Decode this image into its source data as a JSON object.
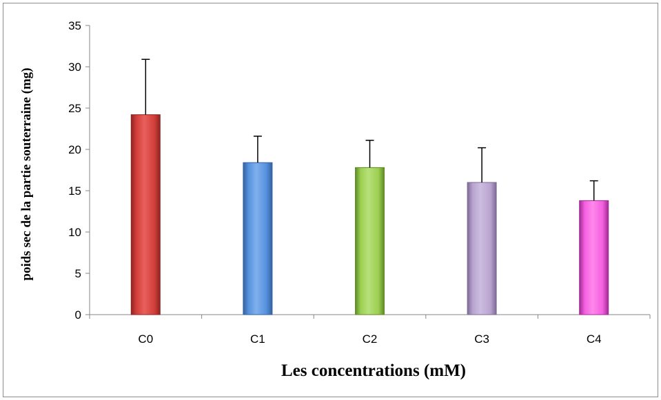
{
  "chart_data": {
    "type": "bar",
    "categories": [
      "C0",
      "C1",
      "C2",
      "C3",
      "C4"
    ],
    "values": [
      24.2,
      18.4,
      17.8,
      16.0,
      13.8
    ],
    "error": [
      6.7,
      3.2,
      3.3,
      4.2,
      2.4
    ],
    "ylim": [
      0,
      35
    ],
    "yticks": [
      0,
      5,
      10,
      15,
      20,
      25,
      30,
      35
    ],
    "xlabel": "Les concentrations (mM)",
    "ylabel": "poids sec de la partie souterraine (mg)",
    "grid": false,
    "legend": "none",
    "colors": [
      {
        "light": "#e8605c",
        "mid": "#d23e3a",
        "dark": "#8e2422"
      },
      {
        "light": "#7fb0ec",
        "mid": "#5591dd",
        "dark": "#33629e"
      },
      {
        "light": "#b7e07a",
        "mid": "#9bcf50",
        "dark": "#5e8a28"
      },
      {
        "light": "#cdbde0",
        "mid": "#b8a3cf",
        "dark": "#7e6a96"
      },
      {
        "light": "#ff88ec",
        "mid": "#f45fdf",
        "dark": "#a12b94"
      }
    ]
  }
}
